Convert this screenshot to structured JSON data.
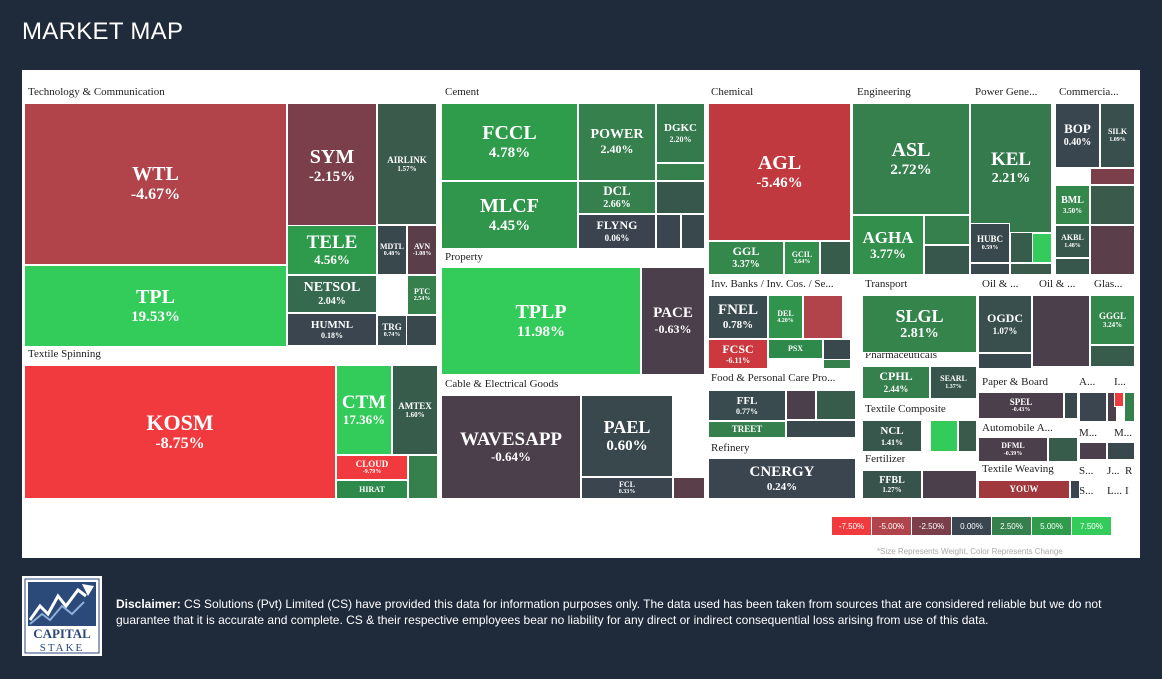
{
  "title": "MARKET MAP",
  "sectors": [
    {
      "id": "tech",
      "label": "Technology & Communication"
    },
    {
      "id": "cement",
      "label": "Cement"
    },
    {
      "id": "chem",
      "label": "Chemical"
    },
    {
      "id": "eng",
      "label": "Engineering"
    },
    {
      "id": "power",
      "label": "Power Gene..."
    },
    {
      "id": "comm",
      "label": "Commercia..."
    },
    {
      "id": "textile_spin",
      "label": "Textile Spinning"
    },
    {
      "id": "property",
      "label": "Property"
    },
    {
      "id": "invbanks",
      "label": "Inv. Banks / Inv. Cos. / Se..."
    },
    {
      "id": "transport",
      "label": "Transport"
    },
    {
      "id": "oil1",
      "label": "Oil & ..."
    },
    {
      "id": "oil2",
      "label": "Oil & ..."
    },
    {
      "id": "glass",
      "label": "Glas..."
    },
    {
      "id": "cable",
      "label": "Cable & Electrical Goods"
    },
    {
      "id": "pharma",
      "label": "Pharmaceuticals"
    },
    {
      "id": "food",
      "label": "Food & Personal Care Pro..."
    },
    {
      "id": "paper",
      "label": "Paper & Board"
    },
    {
      "id": "a1",
      "label": "A..."
    },
    {
      "id": "i1",
      "label": "I..."
    },
    {
      "id": "textile_comp",
      "label": "Textile Composite"
    },
    {
      "id": "auto",
      "label": "Automobile A..."
    },
    {
      "id": "m1",
      "label": "M..."
    },
    {
      "id": "m2",
      "label": "M..."
    },
    {
      "id": "refinery",
      "label": "Refinery"
    },
    {
      "id": "fert",
      "label": "Fertilizer"
    },
    {
      "id": "textile_weav",
      "label": "Textile Weaving"
    },
    {
      "id": "s1",
      "label": "S..."
    },
    {
      "id": "j1",
      "label": "J..."
    },
    {
      "id": "r1",
      "label": "R"
    },
    {
      "id": "s2",
      "label": "S..."
    },
    {
      "id": "l1",
      "label": "L..."
    },
    {
      "id": "i2",
      "label": "I"
    }
  ],
  "stocks": [
    {
      "symbol": "WTL",
      "change": "-4.67%",
      "color": "#b0444a"
    },
    {
      "symbol": "SYM",
      "change": "-2.15%",
      "color": "#7a3f4a"
    },
    {
      "symbol": "AIRLINK",
      "change": "1.57%",
      "color": "#3a5a4c"
    },
    {
      "symbol": "TELE",
      "change": "4.56%",
      "color": "#2e9a4c"
    },
    {
      "symbol": "MDTL",
      "change": "0.48%",
      "color": "#39484c"
    },
    {
      "symbol": "AVN",
      "change": "-1.08%",
      "color": "#5a3f4a"
    },
    {
      "symbol": "NETSOL",
      "change": "2.04%",
      "color": "#356a4e"
    },
    {
      "symbol": "PTC",
      "change": "2.54%",
      "color": "#35804c"
    },
    {
      "symbol": "HUMNL",
      "change": "0.18%",
      "color": "#3a4550"
    },
    {
      "symbol": "TRG",
      "change": "0.74%",
      "color": "#394b4e"
    },
    {
      "symbol": "TPL",
      "change": "19.53%",
      "color": "#33cc5a"
    },
    {
      "symbol": "KOSM",
      "change": "-8.75%",
      "color": "#f03a3e"
    },
    {
      "symbol": "CTM",
      "change": "17.36%",
      "color": "#33cc5a"
    },
    {
      "symbol": "AMTEX",
      "change": "1.60%",
      "color": "#385c4b"
    },
    {
      "symbol": "CLOUD",
      "change": "-9.79%",
      "color": "#f03a3e"
    },
    {
      "symbol": "HIRAT",
      "change": "",
      "color": "#2e8a4a"
    },
    {
      "symbol": "FCCL",
      "change": "4.78%",
      "color": "#2f9c4c"
    },
    {
      "symbol": "POWER",
      "change": "2.40%",
      "color": "#35804c"
    },
    {
      "symbol": "DGKC",
      "change": "2.20%",
      "color": "#357a4d"
    },
    {
      "symbol": "DCL",
      "change": "2.66%",
      "color": "#35804c"
    },
    {
      "symbol": "MLCF",
      "change": "4.45%",
      "color": "#2f964c"
    },
    {
      "symbol": "FLYNG",
      "change": "0.06%",
      "color": "#3a434e"
    },
    {
      "symbol": "TPLP",
      "change": "11.98%",
      "color": "#33cc5a"
    },
    {
      "symbol": "PACE",
      "change": "-0.63%",
      "color": "#4a3f4a"
    },
    {
      "symbol": "WAVESAPP",
      "change": "-0.64%",
      "color": "#4a3f4a"
    },
    {
      "symbol": "PAEL",
      "change": "0.60%",
      "color": "#39484d"
    },
    {
      "symbol": "FCL",
      "change": "0.33%",
      "color": "#3a4550"
    },
    {
      "symbol": "AGL",
      "change": "-5.46%",
      "color": "#c0393f"
    },
    {
      "symbol": "GGL",
      "change": "3.37%",
      "color": "#34884c"
    },
    {
      "symbol": "GCIL",
      "change": "3.64%",
      "color": "#32904c"
    },
    {
      "symbol": "ASL",
      "change": "2.72%",
      "color": "#35804c"
    },
    {
      "symbol": "AGHA",
      "change": "3.77%",
      "color": "#32904c"
    },
    {
      "symbol": "KEL",
      "change": "2.21%",
      "color": "#357a4d"
    },
    {
      "symbol": "HUBC",
      "change": "0.59%",
      "color": "#39484d"
    },
    {
      "symbol": "BOP",
      "change": "0.40%",
      "color": "#39454f"
    },
    {
      "symbol": "SILK",
      "change": "1.09%",
      "color": "#384f4d"
    },
    {
      "symbol": "BML",
      "change": "3.50%",
      "color": "#34884c"
    },
    {
      "symbol": "AKBL",
      "change": "1.48%",
      "color": "#38574c"
    },
    {
      "symbol": "FNEL",
      "change": "0.78%",
      "color": "#394b4e"
    },
    {
      "symbol": "DEL",
      "change": "4.20%",
      "color": "#30944c"
    },
    {
      "symbol": "FCSC",
      "change": "-6.11%",
      "color": "#cc383e"
    },
    {
      "symbol": "PSX",
      "change": "",
      "color": "#2e8a4a"
    },
    {
      "symbol": "SLGL",
      "change": "2.81%",
      "color": "#35844c"
    },
    {
      "symbol": "OGDC",
      "change": "1.07%",
      "color": "#384f4d"
    },
    {
      "symbol": "GGGL",
      "change": "3.24%",
      "color": "#34884c"
    },
    {
      "symbol": "CPHL",
      "change": "2.44%",
      "color": "#35804c"
    },
    {
      "symbol": "SEARL",
      "change": "1.37%",
      "color": "#38554c"
    },
    {
      "symbol": "FFL",
      "change": "0.77%",
      "color": "#394b4e"
    },
    {
      "symbol": "TREET",
      "change": "",
      "color": "#35804c"
    },
    {
      "symbol": "SPEL",
      "change": "-0.43%",
      "color": "#4a3f4a"
    },
    {
      "symbol": "NCL",
      "change": "1.41%",
      "color": "#38574c"
    },
    {
      "symbol": "DFML",
      "change": "-0.39%",
      "color": "#4a3f4a"
    },
    {
      "symbol": "CNERGY",
      "change": "0.24%",
      "color": "#3a4550"
    },
    {
      "symbol": "FFBL",
      "change": "1.27%",
      "color": "#38534c"
    },
    {
      "symbol": "YOUW",
      "change": "",
      "color": "#a0383e"
    }
  ],
  "legend": {
    "items": [
      {
        "label": "-7.50%",
        "color": "#f03a3e"
      },
      {
        "label": "-5.00%",
        "color": "#b0444a"
      },
      {
        "label": "-2.50%",
        "color": "#7a3f4a"
      },
      {
        "label": "0.00%",
        "color": "#3a4550"
      },
      {
        "label": "2.50%",
        "color": "#35804c"
      },
      {
        "label": "5.00%",
        "color": "#2f9c4c"
      },
      {
        "label": "7.50%",
        "color": "#33cc5a"
      }
    ],
    "note": "*Size Represents Weight, Color Represents Change"
  },
  "logo": {
    "line1": "CAPITAL",
    "line2": "STAKE",
    "icon": "chart-arrow-icon"
  },
  "disclaimer": {
    "label": "Disclaimer:",
    "text": " CS Solutions (Pvt) Limited (CS) have provided this data for information purposes only. The data used has been taken from sources that are considered reliable but we do not guarantee that it is accurate and complete. CS & their respective employees bear no liability for any direct or indirect consequential loss arising from use of this data."
  }
}
